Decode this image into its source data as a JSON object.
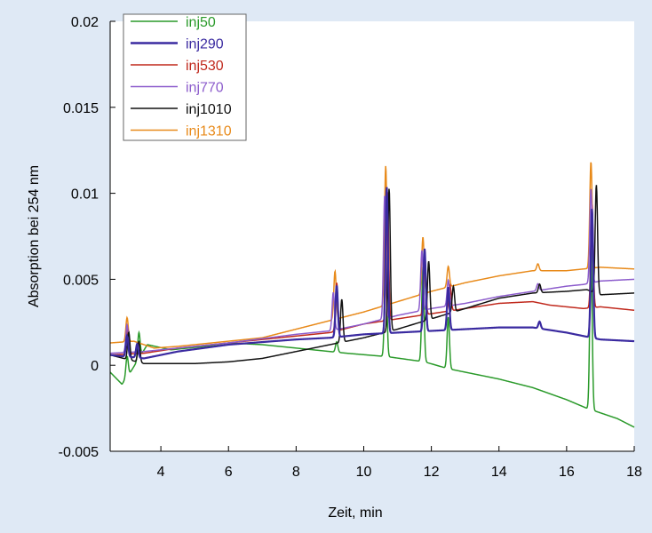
{
  "chart_data": {
    "type": "line",
    "title": "",
    "xlabel": "Zeit, min",
    "ylabel": "Absorption bei 254 nm",
    "xlim": [
      2.5,
      18
    ],
    "ylim": [
      -0.005,
      0.02
    ],
    "xticks": [
      4,
      6,
      8,
      10,
      12,
      14,
      16,
      18
    ],
    "xtick_labels": [
      "4",
      "6",
      "8",
      "10",
      "12",
      "14",
      "16",
      "18"
    ],
    "yticks": [
      -0.005,
      0,
      0.005,
      0.01,
      0.015,
      0.02
    ],
    "ytick_labels": [
      "-0.005",
      "0",
      "0.005",
      "0.01",
      "0.015",
      "0.02"
    ],
    "grid": false,
    "legend_position": "top-left",
    "series": [
      {
        "name": "inj50",
        "color": "#2a9a2a",
        "baseline": [
          [
            2.5,
            -0.0004
          ],
          [
            2.85,
            -0.0011
          ],
          [
            3.1,
            -0.0004
          ],
          [
            3.6,
            0.0012
          ],
          [
            4.3,
            0.0009
          ],
          [
            5.3,
            0.0011
          ],
          [
            6,
            0.0013
          ],
          [
            7,
            0.0012
          ],
          [
            8,
            0.001
          ],
          [
            9,
            0.0008
          ],
          [
            9.5,
            0.0007
          ],
          [
            10.7,
            0.0005
          ],
          [
            11.8,
            0.0002
          ],
          [
            12.5,
            -0.0002
          ],
          [
            14,
            -0.0008
          ],
          [
            15,
            -0.0013
          ],
          [
            16,
            -0.002
          ],
          [
            16.6,
            -0.0025
          ],
          [
            16.9,
            -0.0027
          ],
          [
            17.5,
            -0.0031
          ],
          [
            18,
            -0.0036
          ]
        ],
        "peaks": [
          [
            3.0,
            0.0012
          ],
          [
            3.35,
            0.0015
          ],
          [
            9.2,
            0.0006
          ],
          [
            10.65,
            0.006
          ],
          [
            11.75,
            0.0055
          ],
          [
            12.5,
            0.003
          ],
          [
            16.72,
            0.0095
          ]
        ]
      },
      {
        "name": "inj290",
        "color": "#3a2aa0",
        "baseline": [
          [
            2.5,
            0.0006
          ],
          [
            3.5,
            0.0004
          ],
          [
            4.5,
            0.0008
          ],
          [
            6,
            0.0012
          ],
          [
            8,
            0.0015
          ],
          [
            9,
            0.0016
          ],
          [
            10,
            0.0018
          ],
          [
            12,
            0.002
          ],
          [
            14,
            0.0022
          ],
          [
            15,
            0.0022
          ],
          [
            16,
            0.0019
          ],
          [
            17,
            0.0015
          ],
          [
            18,
            0.0014
          ]
        ],
        "peaks": [
          [
            3.0,
            0.0012
          ],
          [
            3.3,
            0.0008
          ],
          [
            9.2,
            0.003
          ],
          [
            10.68,
            0.0085
          ],
          [
            11.8,
            0.0048
          ],
          [
            12.5,
            0.0025
          ],
          [
            15.2,
            0.0004
          ],
          [
            16.75,
            0.0075
          ]
        ]
      },
      {
        "name": "inj530",
        "color": "#c0281c",
        "baseline": [
          [
            2.5,
            0.0006
          ],
          [
            3.5,
            0.0007
          ],
          [
            4.5,
            0.001
          ],
          [
            6,
            0.0013
          ],
          [
            8,
            0.0017
          ],
          [
            9,
            0.0019
          ],
          [
            10,
            0.0024
          ],
          [
            12,
            0.003
          ],
          [
            13,
            0.0033
          ],
          [
            14,
            0.0036
          ],
          [
            15,
            0.0037
          ],
          [
            15.5,
            0.0035
          ],
          [
            16.5,
            0.0033
          ],
          [
            17,
            0.0034
          ],
          [
            18,
            0.0032
          ]
        ],
        "peaks": [
          [
            3.02,
            0.0015
          ],
          [
            9.2,
            0.0028
          ],
          [
            10.7,
            0.0075
          ],
          [
            11.8,
            0.0035
          ],
          [
            12.55,
            0.0015
          ],
          [
            16.75,
            0.006
          ]
        ]
      },
      {
        "name": "inj770",
        "color": "#8c5ccc",
        "baseline": [
          [
            2.5,
            0.0007
          ],
          [
            3.5,
            0.0008
          ],
          [
            4.5,
            0.001
          ],
          [
            6,
            0.0013
          ],
          [
            8,
            0.0018
          ],
          [
            9,
            0.002
          ],
          [
            10,
            0.0024
          ],
          [
            11,
            0.0029
          ],
          [
            12,
            0.0033
          ],
          [
            13,
            0.0036
          ],
          [
            14,
            0.004
          ],
          [
            15,
            0.0043
          ],
          [
            16,
            0.0046
          ],
          [
            16.5,
            0.0047
          ],
          [
            17,
            0.0049
          ],
          [
            18,
            0.005
          ]
        ],
        "peaks": [
          [
            3.0,
            0.0016
          ],
          [
            9.1,
            0.0022
          ],
          [
            10.62,
            0.0072
          ],
          [
            11.72,
            0.0035
          ],
          [
            12.5,
            0.0015
          ],
          [
            15.15,
            0.0004
          ],
          [
            16.72,
            0.0055
          ]
        ]
      },
      {
        "name": "inj1010",
        "color": "#111111",
        "baseline": [
          [
            2.5,
            0.0006
          ],
          [
            3.5,
            0.0001
          ],
          [
            5,
            0.0001
          ],
          [
            6,
            0.0002
          ],
          [
            7,
            0.0004
          ],
          [
            8,
            0.0008
          ],
          [
            9,
            0.0012
          ],
          [
            10,
            0.0016
          ],
          [
            11,
            0.0021
          ],
          [
            12,
            0.0027
          ],
          [
            13,
            0.0033
          ],
          [
            14,
            0.0039
          ],
          [
            15,
            0.0042
          ],
          [
            16,
            0.0043
          ],
          [
            16.6,
            0.0044
          ],
          [
            17,
            0.0041
          ],
          [
            18,
            0.0042
          ]
        ],
        "peaks": [
          [
            3.05,
            0.0016
          ],
          [
            3.35,
            0.0012
          ],
          [
            9.35,
            0.0025
          ],
          [
            10.75,
            0.0083
          ],
          [
            11.92,
            0.0034
          ],
          [
            12.65,
            0.0015
          ],
          [
            15.2,
            0.0005
          ],
          [
            16.88,
            0.0063
          ]
        ]
      },
      {
        "name": "inj1310",
        "color": "#e88a1a",
        "baseline": [
          [
            2.5,
            0.0013
          ],
          [
            3.2,
            0.0014
          ],
          [
            3.8,
            0.001
          ],
          [
            4.5,
            0.0011
          ],
          [
            6,
            0.0014
          ],
          [
            7,
            0.0016
          ],
          [
            8,
            0.0021
          ],
          [
            9,
            0.0026
          ],
          [
            10,
            0.0031
          ],
          [
            11,
            0.0037
          ],
          [
            12,
            0.0043
          ],
          [
            13,
            0.0048
          ],
          [
            14,
            0.0052
          ],
          [
            15,
            0.0055
          ],
          [
            16,
            0.0055
          ],
          [
            17,
            0.0057
          ],
          [
            18,
            0.0056
          ]
        ],
        "peaks": [
          [
            3.0,
            0.0014
          ],
          [
            9.15,
            0.0028
          ],
          [
            10.65,
            0.0081
          ],
          [
            11.75,
            0.0033
          ],
          [
            12.5,
            0.0012
          ],
          [
            15.15,
            0.0004
          ],
          [
            16.72,
            0.0062
          ]
        ]
      }
    ]
  }
}
